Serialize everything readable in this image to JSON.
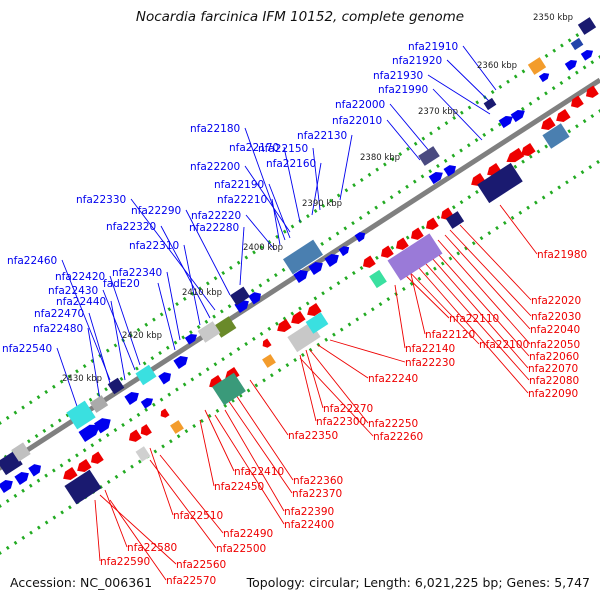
{
  "title": "Nocardia farcinica IFM 10152, complete genome",
  "accession": "Accession: NC_006361",
  "summary": "Topology: circular; Length: 6,021,225 bp; Genes: 5,747",
  "colors": {
    "forward_strand": "#0000ee",
    "reverse_strand": "#ee0000",
    "backbone": "#808080",
    "tick": "#22aa22"
  },
  "kbp_marks": [
    "2350 kbp",
    "2360 kbp",
    "2370 kbp",
    "2380 kbp",
    "2390 kbp",
    "2400 kbp",
    "2410 kbp",
    "2420 kbp",
    "2430 kbp"
  ],
  "forward_labels": [
    "nfa21910",
    "nfa21920",
    "nfa21930",
    "nfa21990",
    "nfa22000",
    "nfa22010",
    "nfa22130",
    "nfa22150",
    "nfa22160",
    "nfa22170",
    "nfa22180",
    "nfa22200",
    "nfa22190",
    "nfa22210",
    "nfa22220",
    "nfa22280",
    "nfa22290",
    "nfa22330",
    "nfa22320",
    "nfa22310",
    "nfa22340",
    "fadE20",
    "nfa22420",
    "nfa22430",
    "nfa22440",
    "nfa22460",
    "nfa22470",
    "nfa22480",
    "nfa22540"
  ],
  "reverse_labels": [
    "nfa21980",
    "nfa22020",
    "nfa22030",
    "nfa22040",
    "nfa22050",
    "nfa22060",
    "nfa22070",
    "nfa22080",
    "nfa22090",
    "nfa22100",
    "nfa22110",
    "nfa22120",
    "nfa22140",
    "nfa22230",
    "nfa22240",
    "nfa22270",
    "nfa22300",
    "nfa22250",
    "nfa22260",
    "nfa22350",
    "nfa22360",
    "nfa22370",
    "nfa22410",
    "nfa22450",
    "nfa22390",
    "nfa22400",
    "nfa22510",
    "nfa22490",
    "nfa22500",
    "nfa22580",
    "nfa22560",
    "nfa22590",
    "nfa22570"
  ]
}
